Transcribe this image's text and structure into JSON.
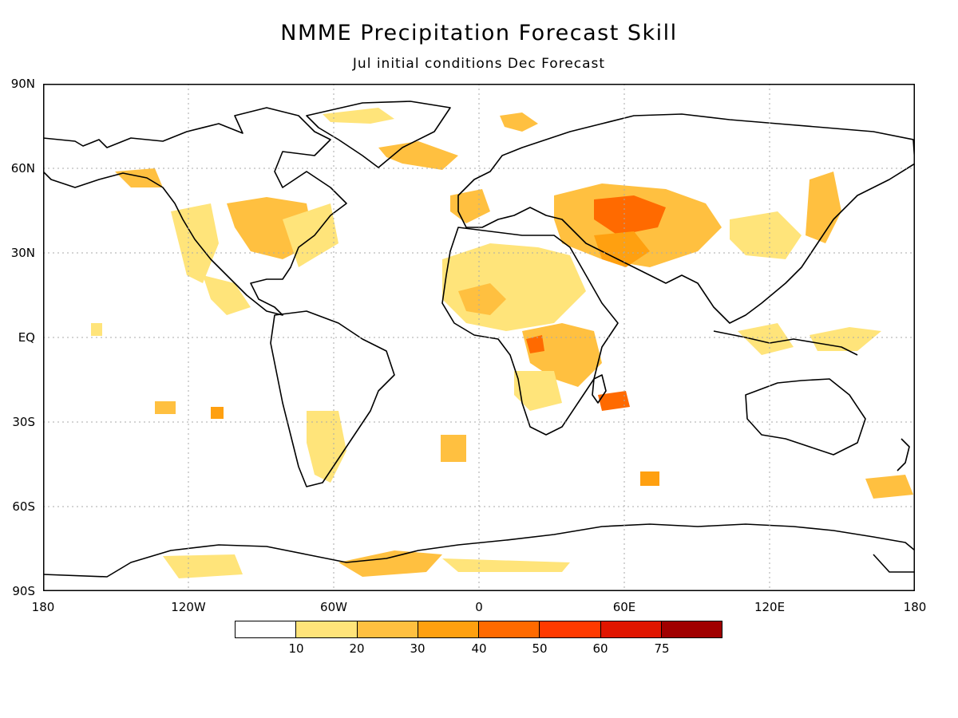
{
  "title": "NMME Precipitation Forecast Skill",
  "subtitle": "Jul initial conditions  Dec Forecast",
  "lat_labels": [
    "90N",
    "60N",
    "30N",
    "EQ",
    "30S",
    "60S",
    "90S"
  ],
  "lon_labels": [
    "180",
    "120W",
    "60W",
    "0",
    "60E",
    "120E",
    "180"
  ],
  "colorbar": {
    "colors": [
      "#ffffff",
      "#ffe47a",
      "#ffc040",
      "#ffa010",
      "#ff6a00",
      "#ff3a00",
      "#e01500",
      "#a00000"
    ],
    "labels": [
      "10",
      "20",
      "30",
      "40",
      "50",
      "60",
      "75"
    ]
  },
  "map_style": {
    "coastline_color": "#000000",
    "grid_color": "#aaaaaa",
    "grid": "dotted"
  }
}
